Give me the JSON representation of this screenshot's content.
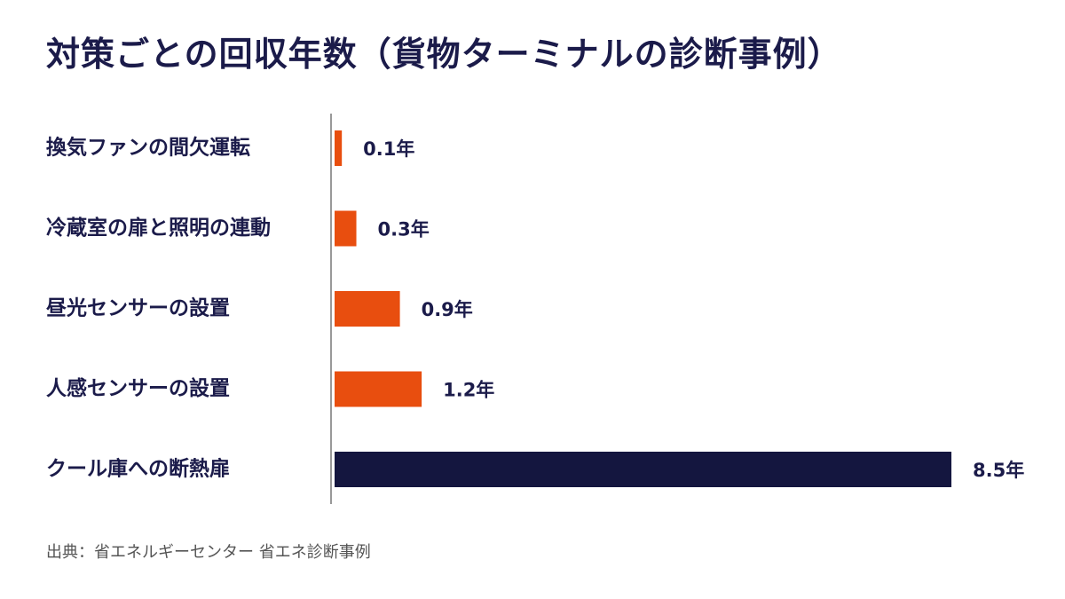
{
  "chart_data": {
    "type": "bar",
    "orientation": "horizontal",
    "title": "対策ごとの回収年数（貨物ターミナルの診断事例）",
    "categories": [
      "換気ファンの間欠運転",
      "冷蔵室の扉と照明の連動",
      "昼光センサーの設置",
      "人感センサーの設置",
      "クール庫への断熱扉"
    ],
    "values": [
      0.1,
      0.3,
      0.9,
      1.2,
      8.5
    ],
    "value_labels": [
      "0.1年",
      "0.3年",
      "0.9年",
      "1.2年",
      "8.5年"
    ],
    "unit": "年",
    "xlim": [
      0,
      8.5
    ],
    "grid": false,
    "legend": "none",
    "colors": {
      "bar_default": "#e84e0f",
      "bar_highlight": "#14163f",
      "axis": "#999999"
    },
    "highlight_index": 4
  },
  "source": "出典：省エネルギーセンター 省エネ診断事例"
}
